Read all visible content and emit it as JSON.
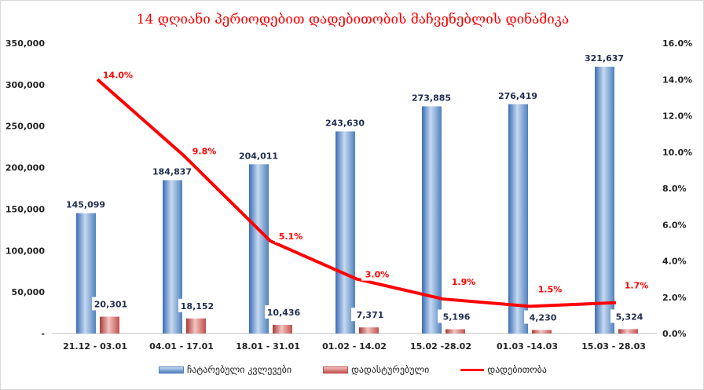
{
  "chart_data": {
    "type": "bar",
    "title": "14 დღიანი პერიოდებით დადებითობის მაჩვენებლის დინამიკა",
    "categories": [
      "21.12 - 03.01",
      "04.01 - 17.01",
      "18.01 - 31.01",
      "01.02 - 14.02",
      "15.02 -28.02",
      "01.03 -14.03",
      "15.03 - 28.03"
    ],
    "series": [
      {
        "name": "ჩატარებული კვლევები",
        "type": "bar",
        "axis": "left",
        "color": "#4f81bd",
        "values": [
          145099,
          184837,
          204011,
          243630,
          273885,
          276419,
          321637
        ],
        "labels": [
          "145,099",
          "184,837",
          "204,011",
          "243,630",
          "273,885",
          "276,419",
          "321,637"
        ]
      },
      {
        "name": "დადასტურებული",
        "type": "bar",
        "axis": "left",
        "color": "#c0504d",
        "values": [
          20301,
          18152,
          10436,
          7371,
          5196,
          4230,
          5324
        ],
        "labels": [
          "20,301",
          "18,152",
          "10,436",
          "7,371",
          "5,196",
          "4,230",
          "5,324"
        ]
      },
      {
        "name": "დადებითობა",
        "type": "line",
        "axis": "right",
        "color": "#ff0000",
        "values": [
          14.0,
          9.8,
          5.1,
          3.0,
          1.9,
          1.5,
          1.7
        ],
        "labels": [
          "14.0%",
          "9.8%",
          "5.1%",
          "3.0%",
          "1.9%",
          "1.5%",
          "1.7%"
        ]
      }
    ],
    "ylim": [
      0,
      350000
    ],
    "y2lim": [
      0,
      16
    ],
    "yticks": [
      "-",
      "50,000",
      "100,000",
      "150,000",
      "200,000",
      "250,000",
      "300,000",
      "350,000"
    ],
    "y2ticks": [
      "0.0%",
      "2.0%",
      "4.0%",
      "6.0%",
      "8.0%",
      "10.0%",
      "12.0%",
      "14.0%",
      "16.0%"
    ],
    "grid": false,
    "legend": "bottom"
  }
}
